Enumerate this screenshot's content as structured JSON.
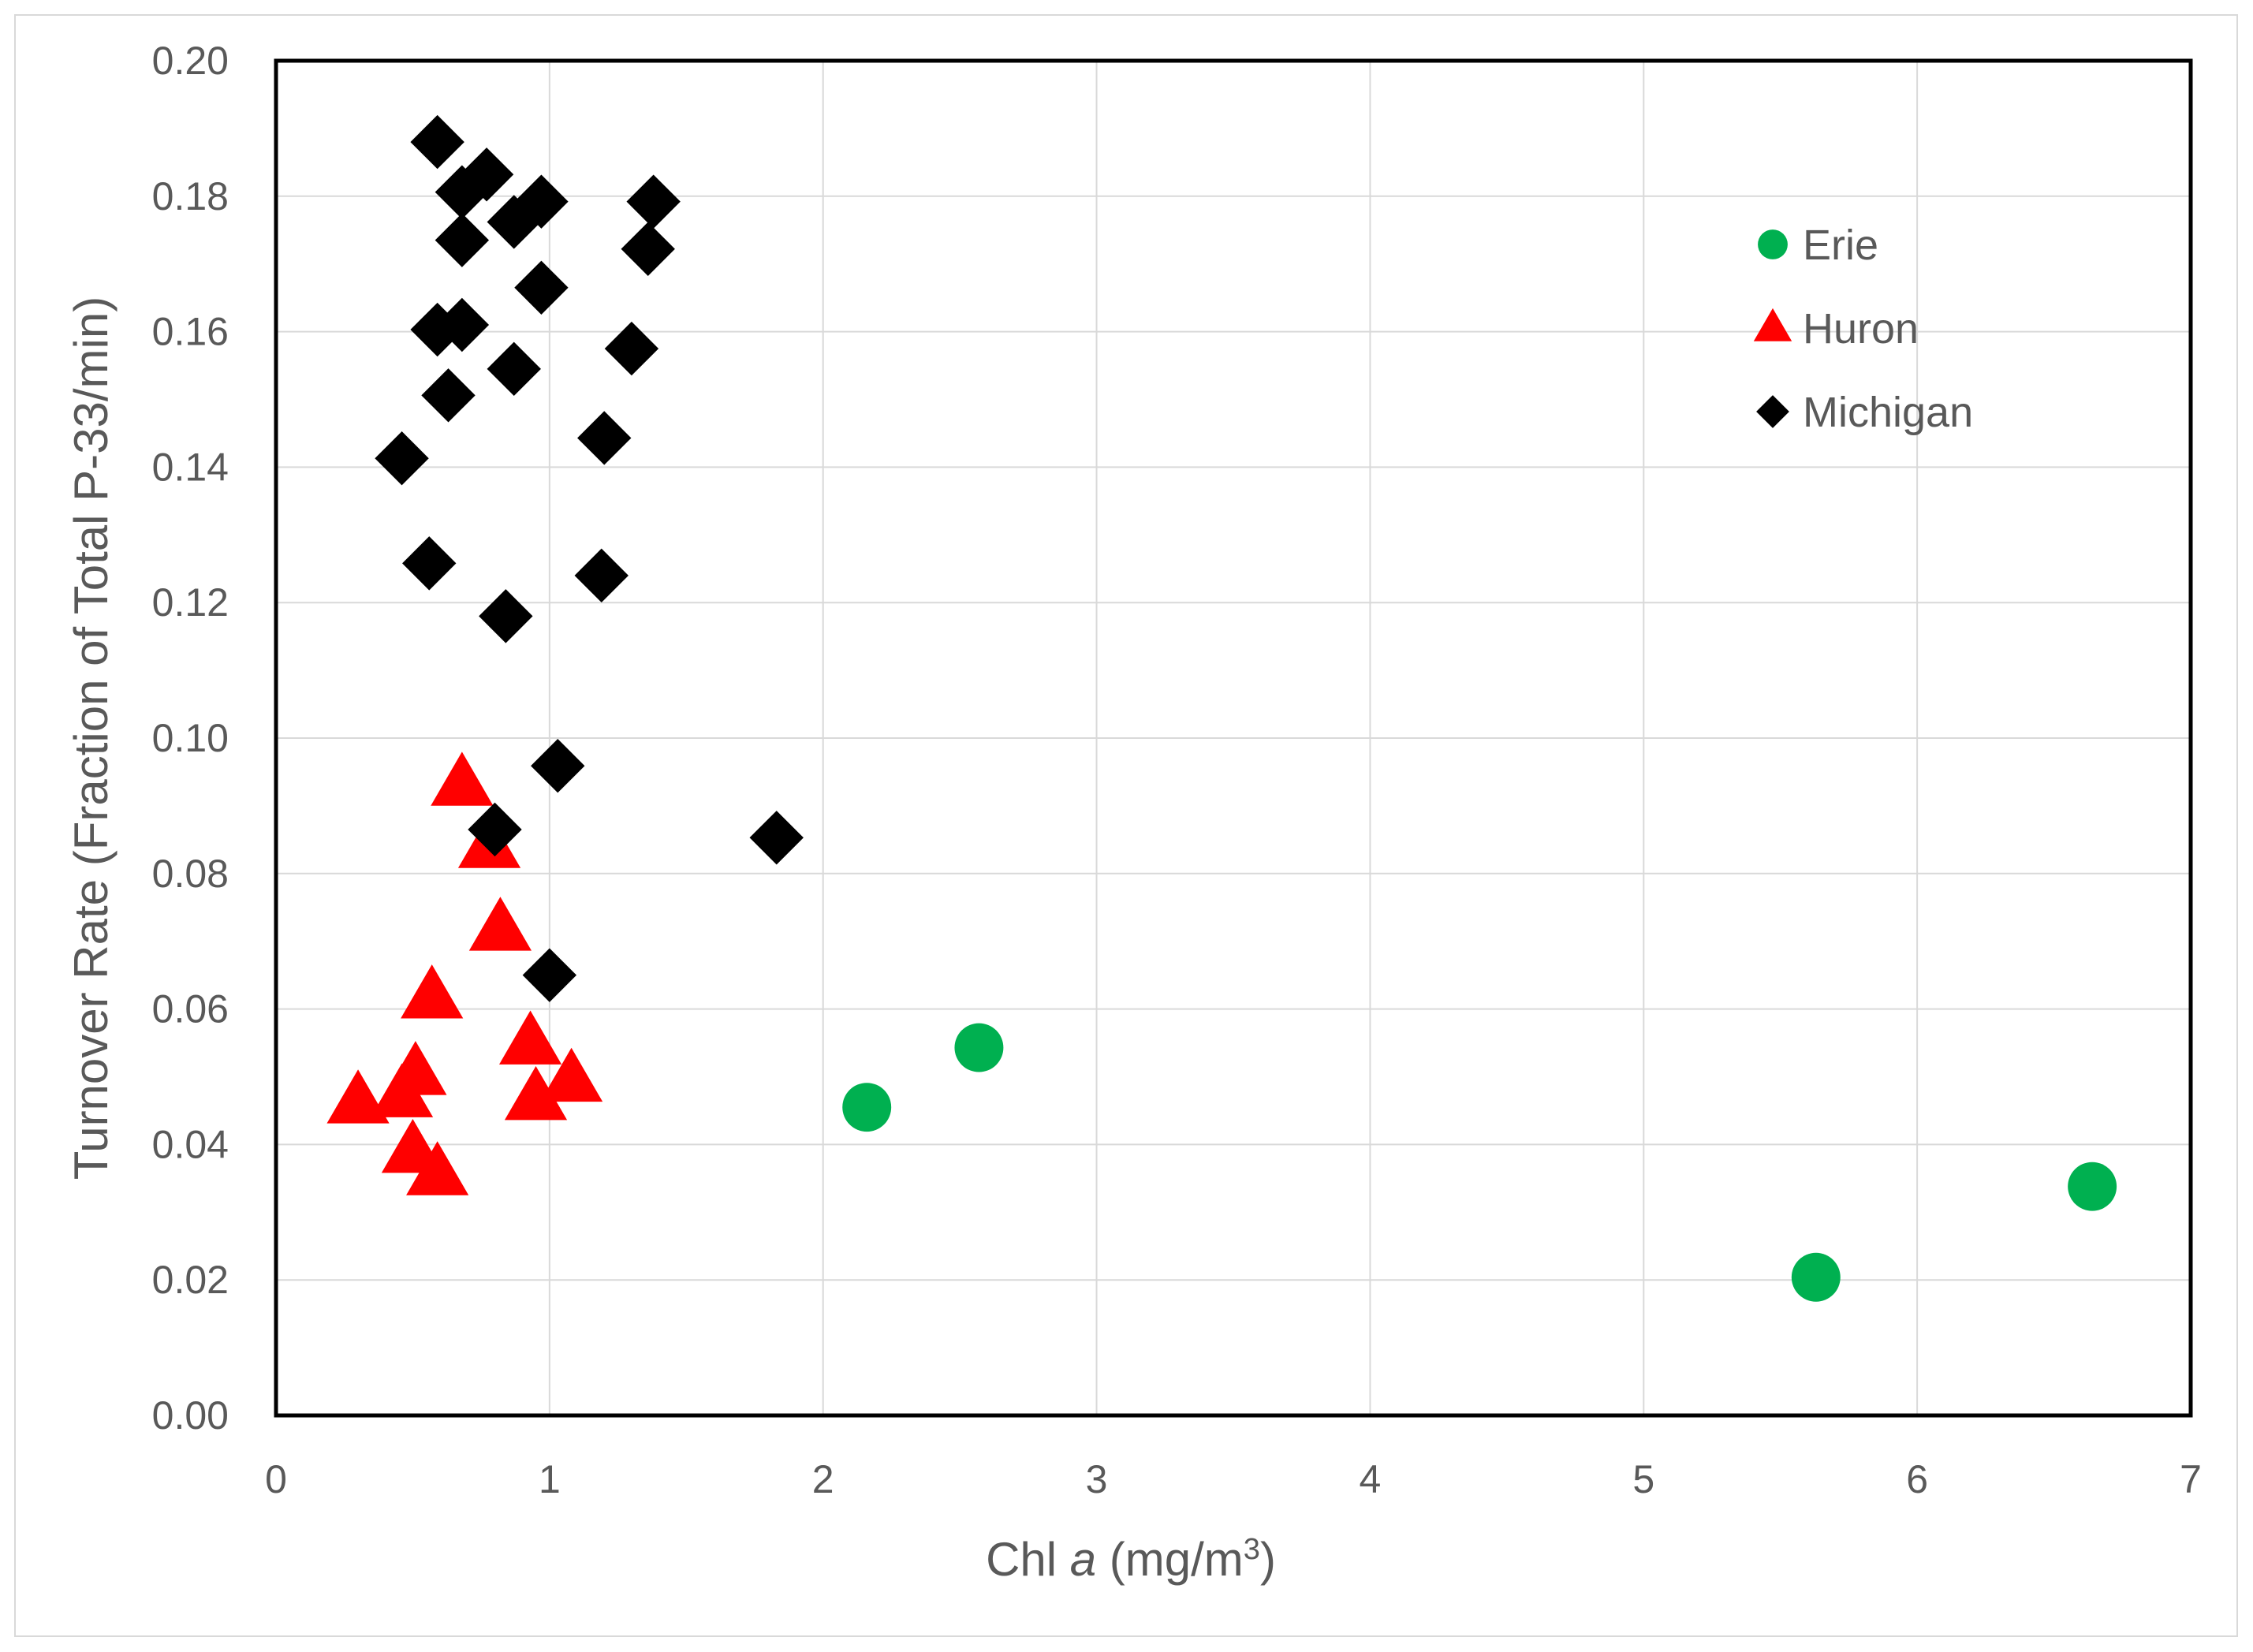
{
  "chart_data": {
    "type": "scatter",
    "xlabel": {
      "prefix": "Chl ",
      "italic": "a",
      "suffix": " (mg/m",
      "sup": "3",
      "close": ")"
    },
    "ylabel": "Turnover Rate (Fraction of Total P-33/min)",
    "xlim": [
      0,
      7
    ],
    "ylim": [
      0,
      0.2
    ],
    "x_ticks": [
      "0",
      "1",
      "2",
      "3",
      "4",
      "5",
      "6",
      "7"
    ],
    "y_ticks": [
      "0.00",
      "0.02",
      "0.04",
      "0.06",
      "0.08",
      "0.10",
      "0.12",
      "0.14",
      "0.16",
      "0.18",
      "0.20"
    ],
    "grid": true,
    "legend_position": "top-right",
    "series": [
      {
        "name": "Erie",
        "marker": "circle",
        "color": "#00b050",
        "points": [
          [
            2.16,
            0.0455
          ],
          [
            2.57,
            0.0543
          ],
          [
            5.63,
            0.0204
          ],
          [
            6.64,
            0.0338
          ]
        ]
      },
      {
        "name": "Huron",
        "marker": "triangle",
        "color": "#ff0000",
        "points": [
          [
            0.3,
            0.0463
          ],
          [
            0.46,
            0.0472
          ],
          [
            0.5,
            0.039
          ],
          [
            0.51,
            0.0505
          ],
          [
            0.57,
            0.0618
          ],
          [
            0.59,
            0.0357
          ],
          [
            0.68,
            0.0932
          ],
          [
            0.78,
            0.084
          ],
          [
            0.82,
            0.0718
          ],
          [
            0.93,
            0.055
          ],
          [
            0.95,
            0.0468
          ],
          [
            1.08,
            0.0495
          ]
        ]
      },
      {
        "name": "Michigan",
        "marker": "diamond",
        "color": "#000000",
        "points": [
          [
            0.46,
            0.1413
          ],
          [
            0.56,
            0.1258
          ],
          [
            0.59,
            0.188
          ],
          [
            0.59,
            0.1603
          ],
          [
            0.63,
            0.1506
          ],
          [
            0.68,
            0.1806
          ],
          [
            0.68,
            0.1735
          ],
          [
            0.68,
            0.161
          ],
          [
            0.77,
            0.1832
          ],
          [
            0.8,
            0.0865
          ],
          [
            0.84,
            0.118
          ],
          [
            0.87,
            0.1762
          ],
          [
            0.87,
            0.1545
          ],
          [
            0.97,
            0.1792
          ],
          [
            0.97,
            0.1665
          ],
          [
            1.0,
            0.065
          ],
          [
            1.03,
            0.0959
          ],
          [
            1.19,
            0.124
          ],
          [
            1.2,
            0.1443
          ],
          [
            1.3,
            0.1575
          ],
          [
            1.36,
            0.1722
          ],
          [
            1.38,
            0.1792
          ],
          [
            1.83,
            0.0853
          ]
        ]
      }
    ]
  }
}
